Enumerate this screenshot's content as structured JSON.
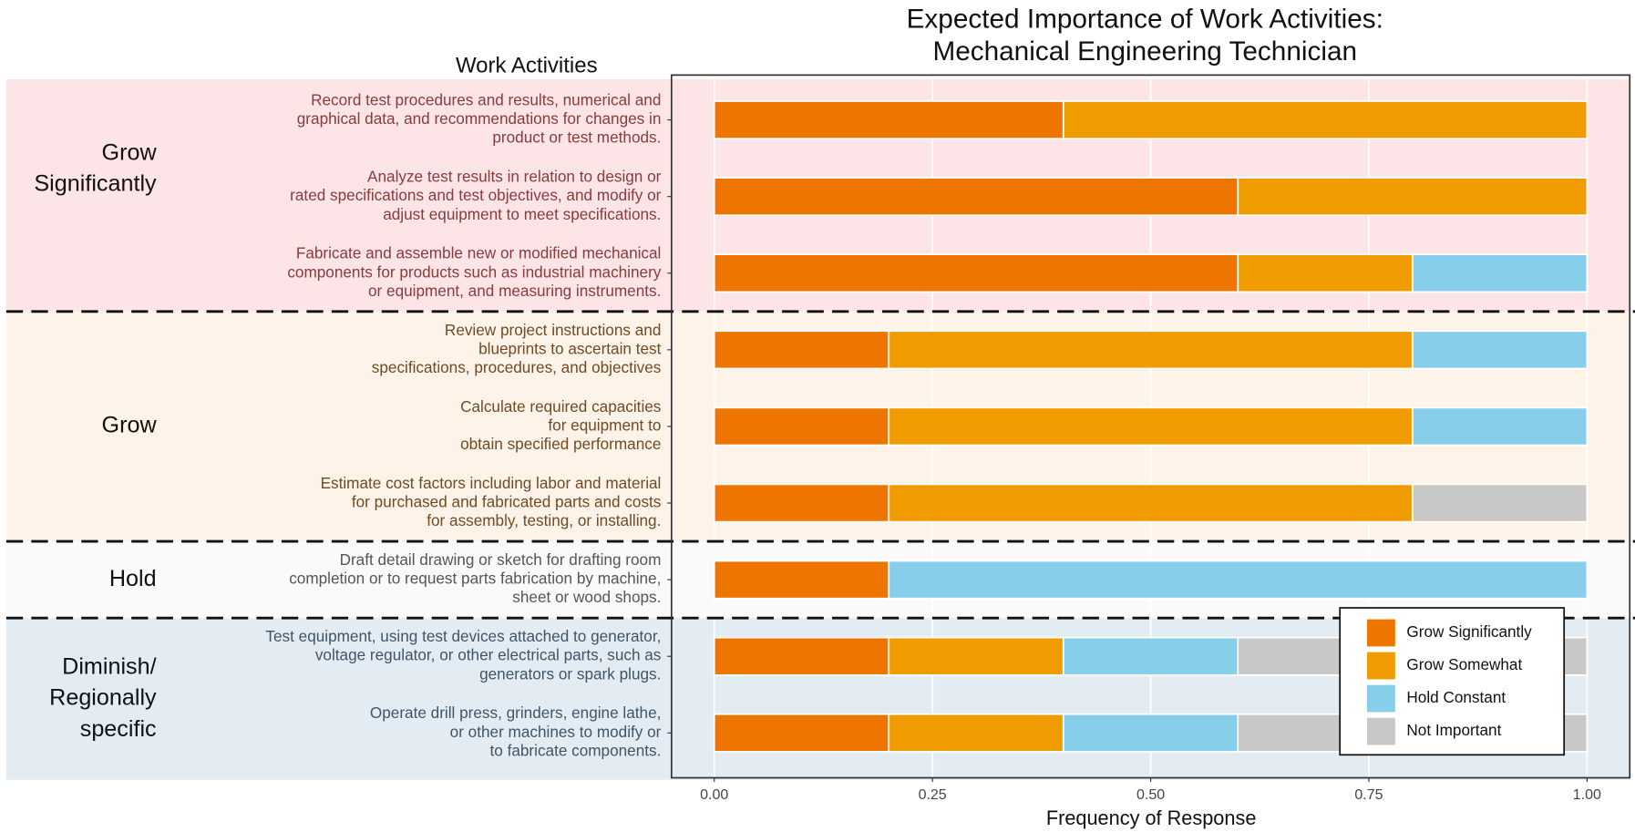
{
  "chart_data": {
    "type": "stacked-bar-horizontal",
    "title": [
      "Expected Importance of Work Activities:",
      "Mechanical Engineering Technician"
    ],
    "y_header": "Work Activities",
    "x_label": "Frequency of Response",
    "xlim": [
      0,
      1
    ],
    "xticks": [
      {
        "value": 0,
        "label": "0.00"
      },
      {
        "value": 0.25,
        "label": "0.25"
      },
      {
        "value": 0.5,
        "label": "0.50"
      },
      {
        "value": 0.75,
        "label": "0.75"
      },
      {
        "value": 1,
        "label": "1.00"
      }
    ],
    "groups": [
      {
        "name": [
          "Grow",
          "Significantly"
        ],
        "background": "#fde4e6",
        "text_color": "#8a3b3b",
        "activities": [
          [
            "Record test procedures and results, numerical and",
            "graphical data, and recommendations for changes in",
            "product or test methods."
          ],
          [
            "Analyze test results in relation to design or",
            "rated specifications and test objectives, and modify or",
            "adjust equipment to meet specifications."
          ],
          [
            "Fabricate and assemble new or modified mechanical",
            "components for products such as industrial machinery",
            "or equipment, and measuring instruments."
          ]
        ]
      },
      {
        "name": [
          "Grow"
        ],
        "background": "#fef3e8",
        "text_color": "#6e4b25",
        "activities": [
          [
            "Review project instructions and",
            "blueprints to ascertain test",
            "specifications, procedures, and objectives"
          ],
          [
            "Calculate required capacities",
            "for equipment to",
            "obtain specified performance"
          ],
          [
            "Estimate cost factors including labor and material",
            "for purchased and fabricated parts and costs",
            "for assembly, testing, or installing."
          ]
        ]
      },
      {
        "name": [
          "Hold"
        ],
        "background": "#fafafa",
        "text_color": "#555555",
        "activities": [
          [
            "Draft detail drawing or sketch for drafting room",
            "completion or to request parts fabrication by machine,",
            "sheet or wood shops."
          ]
        ]
      },
      {
        "name": [
          "Diminish/",
          "Regionally",
          "specific"
        ],
        "background": "#e4ecf3",
        "text_color": "#3f5567",
        "activities": [
          [
            "Test equipment, using test devices attached to generator,",
            "voltage regulator, or other electrical parts, such as",
            "generators or spark plugs."
          ],
          [
            "Operate drill press, grinders, engine lathe,",
            "or other machines to modify or",
            "to fabricate components."
          ]
        ]
      }
    ],
    "series": [
      {
        "name": "Grow Significantly",
        "color": "#ee7600",
        "values": [
          0.4,
          0.6,
          0.6,
          0.2,
          0.2,
          0.2,
          0.2,
          0.2,
          0.2
        ]
      },
      {
        "name": "Grow Somewhat",
        "color": "#f09b00",
        "values": [
          0.6,
          0.4,
          0.2,
          0.6,
          0.6,
          0.6,
          0,
          0.2,
          0.2
        ]
      },
      {
        "name": "Hold Constant",
        "color": "#87ceeb",
        "values": [
          0,
          0,
          0.2,
          0.2,
          0.2,
          0,
          0.8,
          0.2,
          0.2
        ]
      },
      {
        "name": "Not Important",
        "color": "#c8c8c8",
        "values": [
          0,
          0,
          0,
          0,
          0,
          0.2,
          0,
          0.4,
          0.4
        ]
      }
    ],
    "legend": "bottom-right"
  }
}
